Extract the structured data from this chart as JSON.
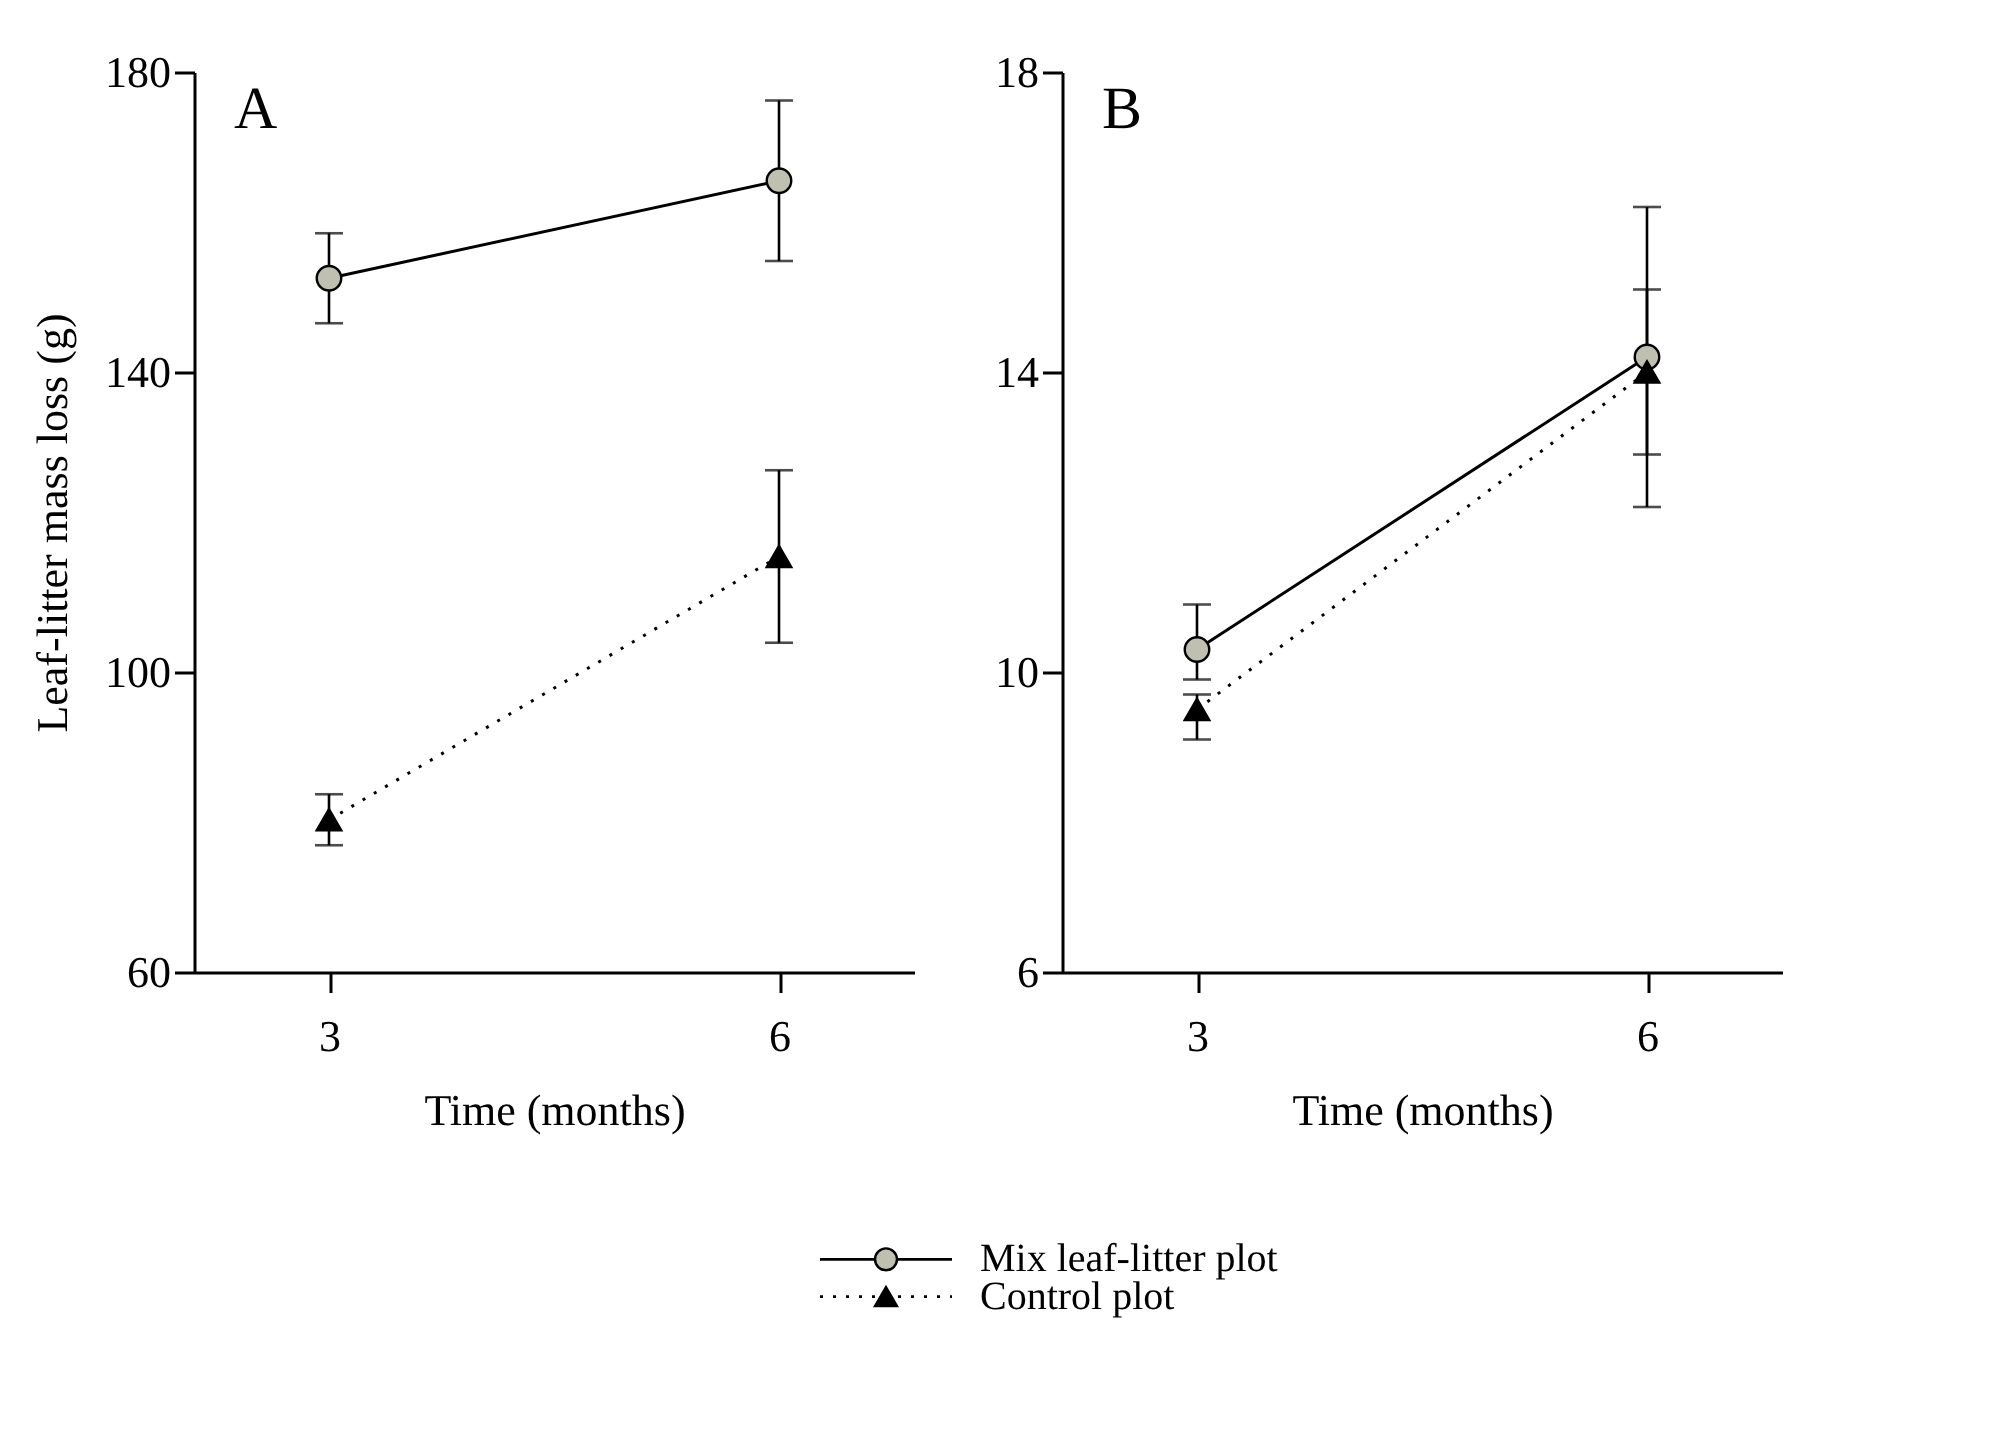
{
  "chart_data": [
    {
      "type": "line",
      "annotations": [
        "A"
      ],
      "xlabel": "Time (months)",
      "ylabel": "Leaf-litter mass loss (g)",
      "categories": [
        "3",
        "6"
      ],
      "ylim": [
        60,
        180
      ],
      "yticks": [
        60,
        100,
        140,
        180
      ],
      "legend": "bottom",
      "series": [
        {
          "name": "Mix leaf-litter plot",
          "color": "#c0c0b0",
          "marker": "circle",
          "line_style": "solid",
          "values": [
            152.5,
            165.5
          ],
          "errors": [
            6,
            10.7
          ]
        },
        {
          "name": "Control plot",
          "color": "#000000",
          "marker": "triangle",
          "line_style": "dotted",
          "values": [
            80.3,
            115.4
          ],
          "errors": [
            3.4,
            11.5
          ]
        }
      ]
    },
    {
      "type": "line",
      "annotations": [
        "B"
      ],
      "xlabel": "Time (months)",
      "categories": [
        "3",
        "6"
      ],
      "ylim": [
        6,
        18
      ],
      "yticks": [
        6,
        10,
        14,
        18
      ],
      "series": [
        {
          "name": "Mix leaf-litter plot",
          "color": "#c0c0b0",
          "marker": "circle",
          "line_style": "solid",
          "values": [
            10.3,
            14.2
          ],
          "errors": [
            [
              9.9,
              10.9
            ],
            [
              12.2,
              16.2
            ]
          ]
        },
        {
          "name": "Control plot",
          "color": "#000000",
          "marker": "triangle",
          "line_style": "dotted",
          "values": [
            9.5,
            14.0
          ],
          "errors": [
            [
              9.1,
              9.7
            ],
            [
              12.9,
              15.1
            ]
          ]
        }
      ]
    }
  ]
}
